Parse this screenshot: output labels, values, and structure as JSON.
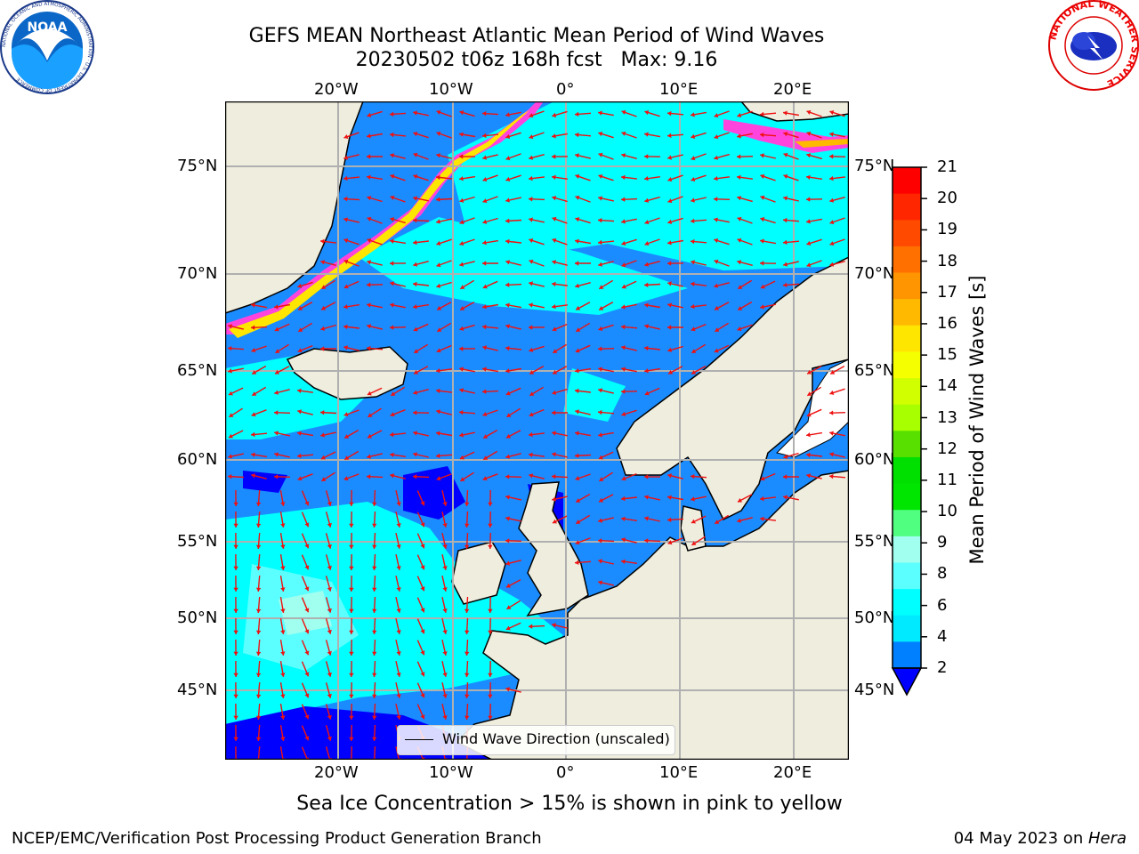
{
  "title": {
    "line1": "GEFS MEAN Northeast Atlantic Mean Period of Wind Waves",
    "line2": "20230502 t06z 168h fcst   Max: 9.16"
  },
  "axes": {
    "lon_labels": [
      "20°W",
      "10°W",
      "0°",
      "10°E",
      "20°E"
    ],
    "lat_labels": [
      "75°N",
      "70°N",
      "65°N",
      "60°N",
      "55°N",
      "50°N",
      "45°N"
    ]
  },
  "legend": {
    "label": "Wind Wave Direction (unscaled)"
  },
  "colorbar": {
    "label": "Mean Period of Wind Waves [s]",
    "ticks": [
      "21",
      "20",
      "19",
      "18",
      "17",
      "16",
      "15",
      "14",
      "13",
      "12",
      "11",
      "10",
      "9",
      "8",
      "6",
      "4",
      "2"
    ],
    "colors": [
      "#ff0000",
      "#ff2600",
      "#ff4a00",
      "#ff7000",
      "#ff9500",
      "#ffba00",
      "#ffe600",
      "#f5ff00",
      "#d2ff00",
      "#a8ff00",
      "#58e000",
      "#00e000",
      "#00e600",
      "#50ff80",
      "#a0ffee",
      "#5cffff",
      "#00ffff",
      "#00eaff",
      "#0080ff"
    ],
    "under_color": "#0000ff"
  },
  "caption": "Sea Ice Concentration > 15% is shown in pink to yellow",
  "footer": {
    "left": "NCEP/EMC/Verification Post Processing Product Generation Branch",
    "date": "04 May 2023 on ",
    "machine": "Hera"
  },
  "logos": {
    "noaa_text": "NOAA",
    "noaa_ring": "NATIONAL OCEANIC AND ATMOSPHERIC ADMINISTRATION · U.S. DEPARTMENT OF COMMERCE",
    "nws_ring": "NATIONAL WEATHER SERVICE"
  },
  "colors": {
    "land": "#efedde",
    "ocean_cyan": "#00ffff",
    "ocean_mid": "#1a8cff",
    "ocean_deep": "#0000ff",
    "arrow": "#ee1111",
    "ice": "#ff44dd"
  }
}
